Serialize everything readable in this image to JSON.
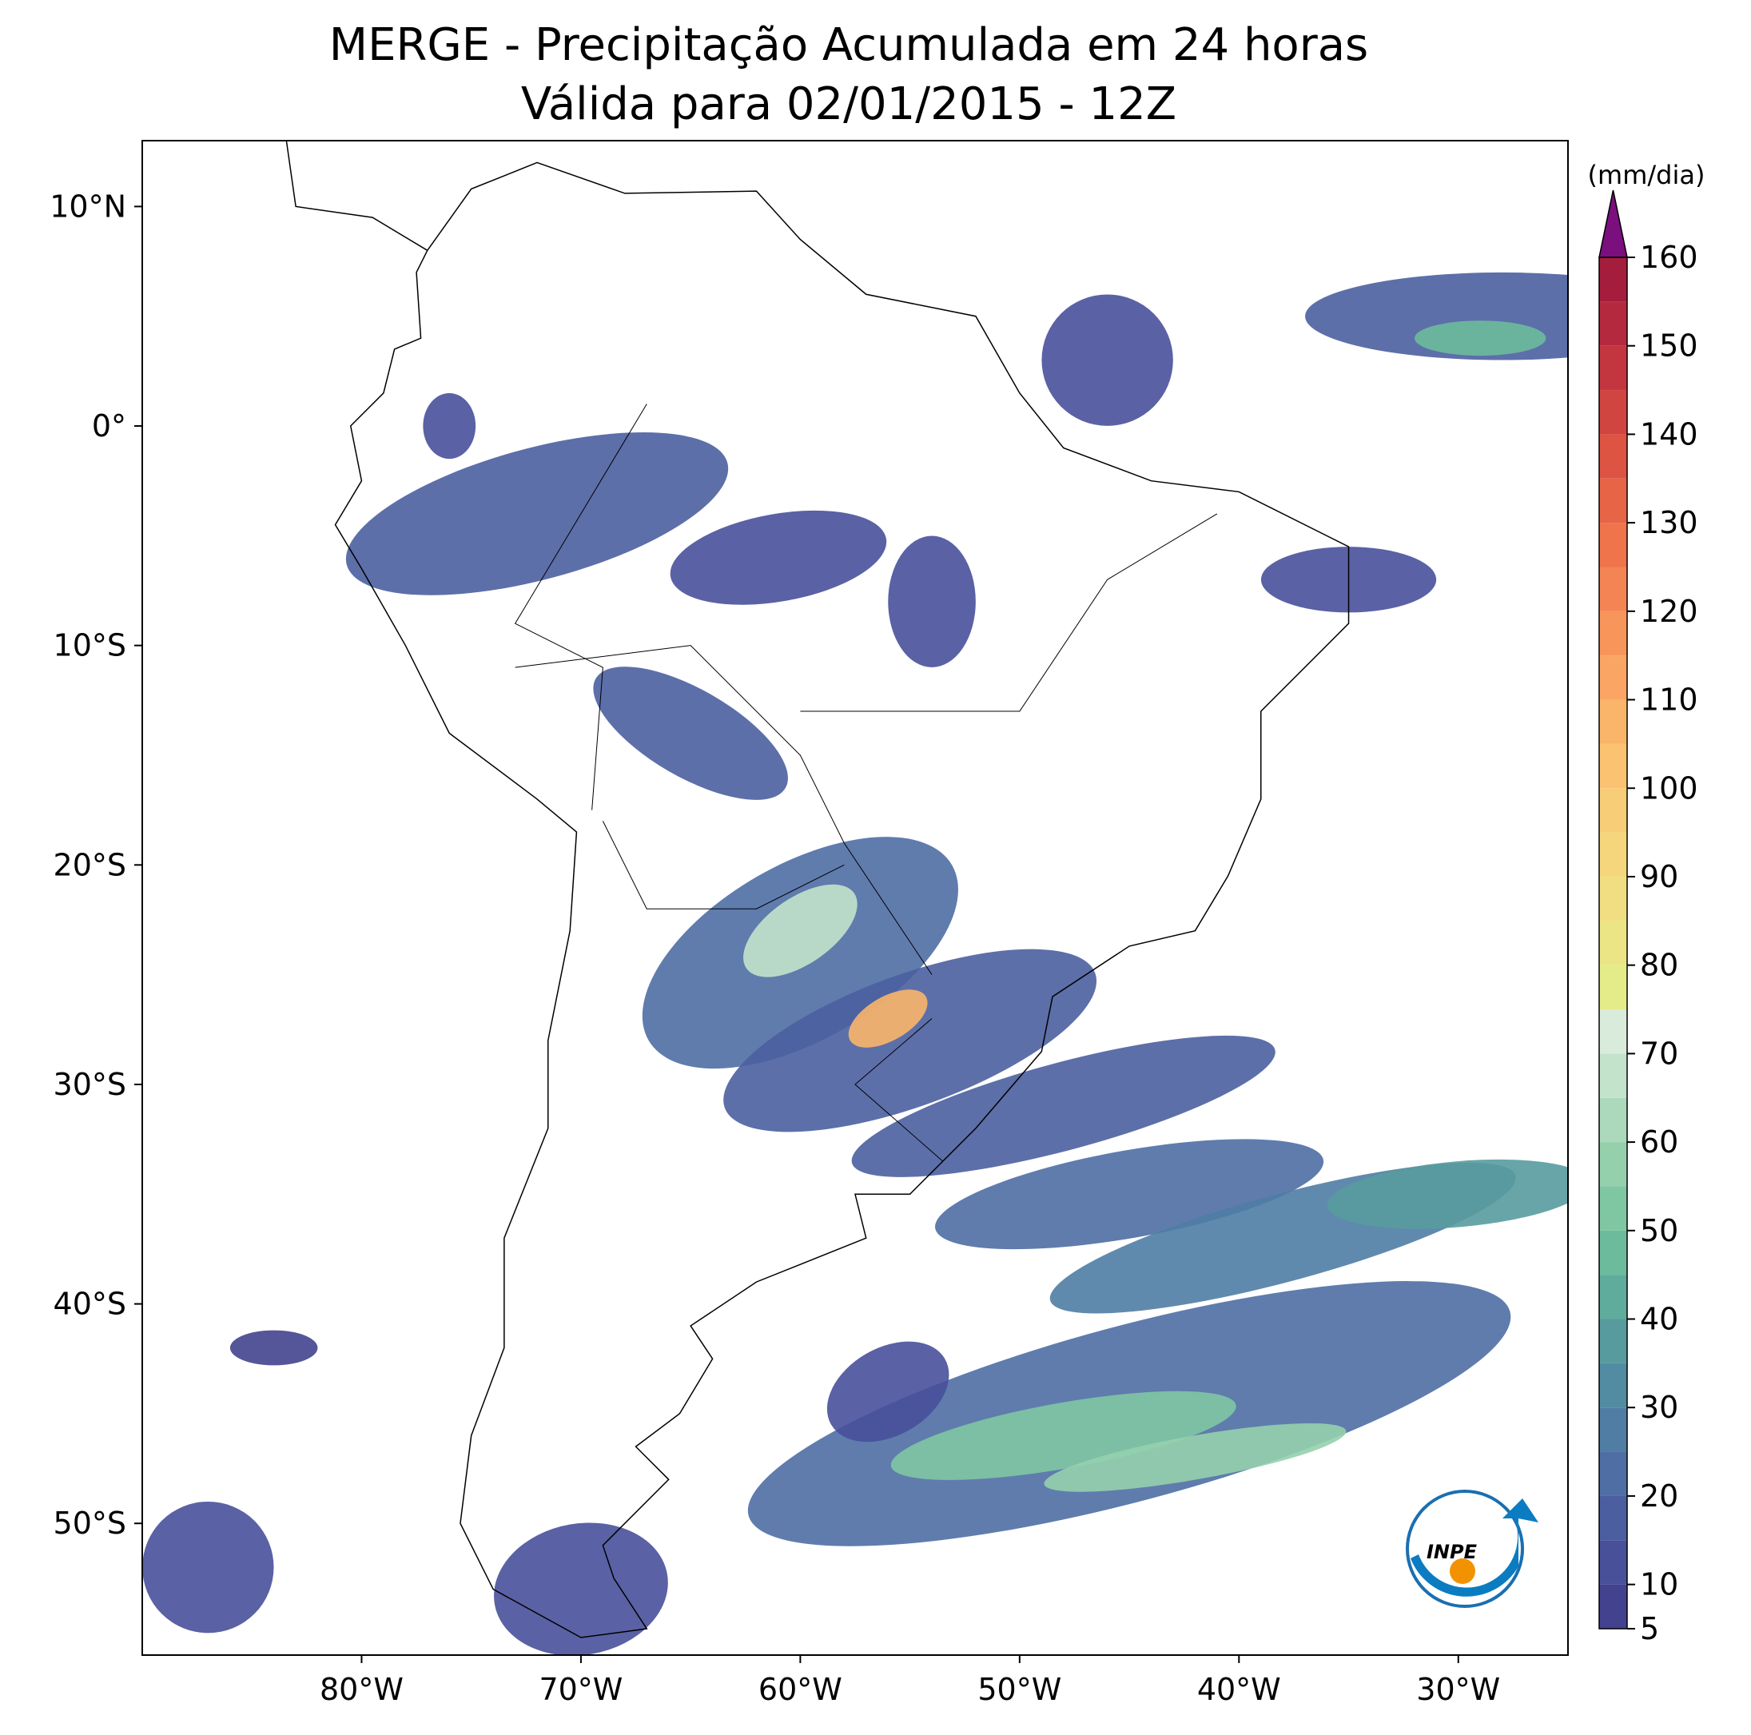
{
  "title": "MERGE - Precipitação Acumulada em 24 horas",
  "subtitle": "Válida para 02/01/2015 - 12Z",
  "map": {
    "xlim": [
      -90,
      -25
    ],
    "ylim": [
      -56,
      13
    ],
    "xticks": [
      {
        "value": -80,
        "label": "80°W"
      },
      {
        "value": -70,
        "label": "70°W"
      },
      {
        "value": -60,
        "label": "60°W"
      },
      {
        "value": -50,
        "label": "50°W"
      },
      {
        "value": -40,
        "label": "40°W"
      },
      {
        "value": -30,
        "label": "30°W"
      }
    ],
    "yticks": [
      {
        "value": 10,
        "label": "10°N"
      },
      {
        "value": 0,
        "label": "0°"
      },
      {
        "value": -10,
        "label": "10°S"
      },
      {
        "value": -20,
        "label": "20°S"
      },
      {
        "value": -30,
        "label": "30°S"
      },
      {
        "value": -40,
        "label": "40°S"
      },
      {
        "value": -50,
        "label": "50°S"
      }
    ]
  },
  "colorbar": {
    "label": "(mm/dia)",
    "ticks": [
      5,
      10,
      20,
      30,
      40,
      50,
      60,
      70,
      80,
      90,
      100,
      110,
      120,
      130,
      140,
      150,
      160
    ],
    "bounds": [
      5,
      10,
      15,
      20,
      25,
      30,
      35,
      40,
      45,
      50,
      55,
      60,
      65,
      70,
      75,
      80,
      85,
      90,
      95,
      100,
      105,
      110,
      115,
      120,
      125,
      130,
      135,
      140,
      145,
      150,
      155,
      160
    ],
    "colors": [
      "#43428e",
      "#48509a",
      "#4b5fa0",
      "#4e6ea4",
      "#4f7da4",
      "#528ca2",
      "#589b9f",
      "#5fab9c",
      "#6cbb9c",
      "#7fc7a3",
      "#95d0ad",
      "#acd9bb",
      "#c3e3cb",
      "#d9ecdb",
      "#e4ec8a",
      "#ece586",
      "#f1de82",
      "#f5d67c",
      "#f8cd77",
      "#fbc371",
      "#fbb56a",
      "#faa563",
      "#f8955b",
      "#f48453",
      "#ef744c",
      "#e76446",
      "#dd5443",
      "#d14541",
      "#c4363f",
      "#b5293e",
      "#a51d3d"
    ],
    "extend_color": "#7b0f7d"
  },
  "logo": "INPE"
}
